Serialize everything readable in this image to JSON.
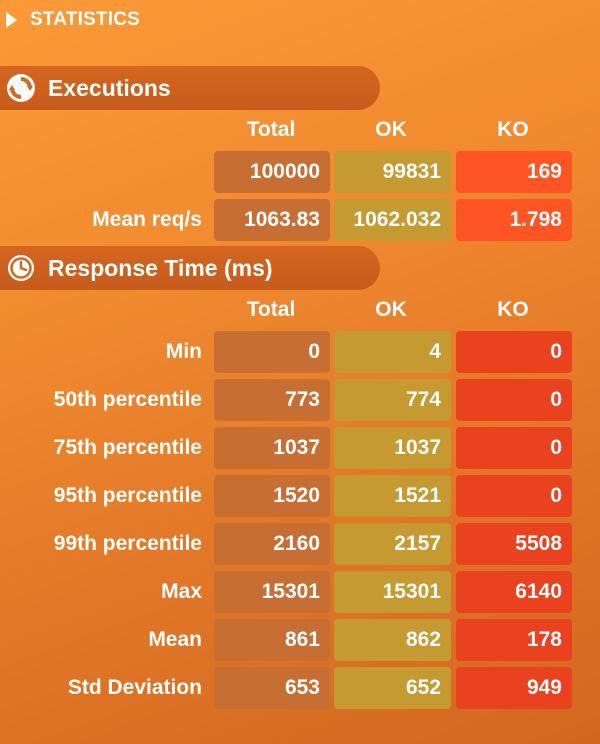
{
  "panel": {
    "title": "STATISTICS"
  },
  "executions": {
    "title": "Executions",
    "columns": [
      "Total",
      "OK",
      "KO"
    ],
    "rows": [
      {
        "label": "",
        "total": "100000",
        "ok": "99831",
        "ko": "169"
      },
      {
        "label": "Mean req/s",
        "total": "1063.83",
        "ok": "1062.032",
        "ko": "1.798"
      }
    ]
  },
  "response": {
    "title": "Response Time (ms)",
    "columns": [
      "Total",
      "OK",
      "KO"
    ],
    "rows": [
      {
        "label": "Min",
        "total": "0",
        "ok": "4",
        "ko": "0"
      },
      {
        "label": "50th percentile",
        "total": "773",
        "ok": "774",
        "ko": "0"
      },
      {
        "label": "75th percentile",
        "total": "1037",
        "ok": "1037",
        "ko": "0"
      },
      {
        "label": "95th percentile",
        "total": "1520",
        "ok": "1521",
        "ko": "0"
      },
      {
        "label": "99th percentile",
        "total": "2160",
        "ok": "2157",
        "ko": "5508"
      },
      {
        "label": "Max",
        "total": "15301",
        "ok": "15301",
        "ko": "6140"
      },
      {
        "label": "Mean",
        "total": "861",
        "ok": "862",
        "ko": "178"
      },
      {
        "label": "Std Deviation",
        "total": "653",
        "ok": "652",
        "ko": "949"
      }
    ]
  },
  "icons": {
    "toggle": "triangle-right-icon",
    "executions": "refresh-icon",
    "response": "clock-icon"
  },
  "colors": {
    "total_cell": "#c76f32",
    "ok_cell": "#c59a30",
    "ko_cell": "#ea421f"
  }
}
